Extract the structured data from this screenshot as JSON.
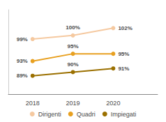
{
  "chart_data": {
    "type": "line",
    "x": [
      2018,
      2019,
      2020
    ],
    "series": [
      {
        "name": "Dirigenti",
        "color": "#f5c9a0",
        "values": [
          99,
          100,
          102
        ],
        "value_labels": [
          "99%",
          "100%",
          "102%"
        ]
      },
      {
        "name": "Quadri",
        "color": "#e8a020",
        "values": [
          93,
          95,
          95
        ],
        "value_labels": [
          "93%",
          "95%",
          "95%"
        ]
      },
      {
        "name": "Impiegati",
        "color": "#9b7000",
        "values": [
          89,
          90,
          91
        ],
        "value_labels": [
          "89%",
          "90%",
          "91%"
        ]
      }
    ],
    "xlim": [
      2017.4,
      2021.1
    ],
    "xticks": [
      2018,
      2019,
      2020
    ],
    "ylim": [
      84,
      107
    ],
    "tick_labels": "x",
    "data_labels": true,
    "grid": false,
    "legend": "bottom",
    "marker": "circle"
  }
}
